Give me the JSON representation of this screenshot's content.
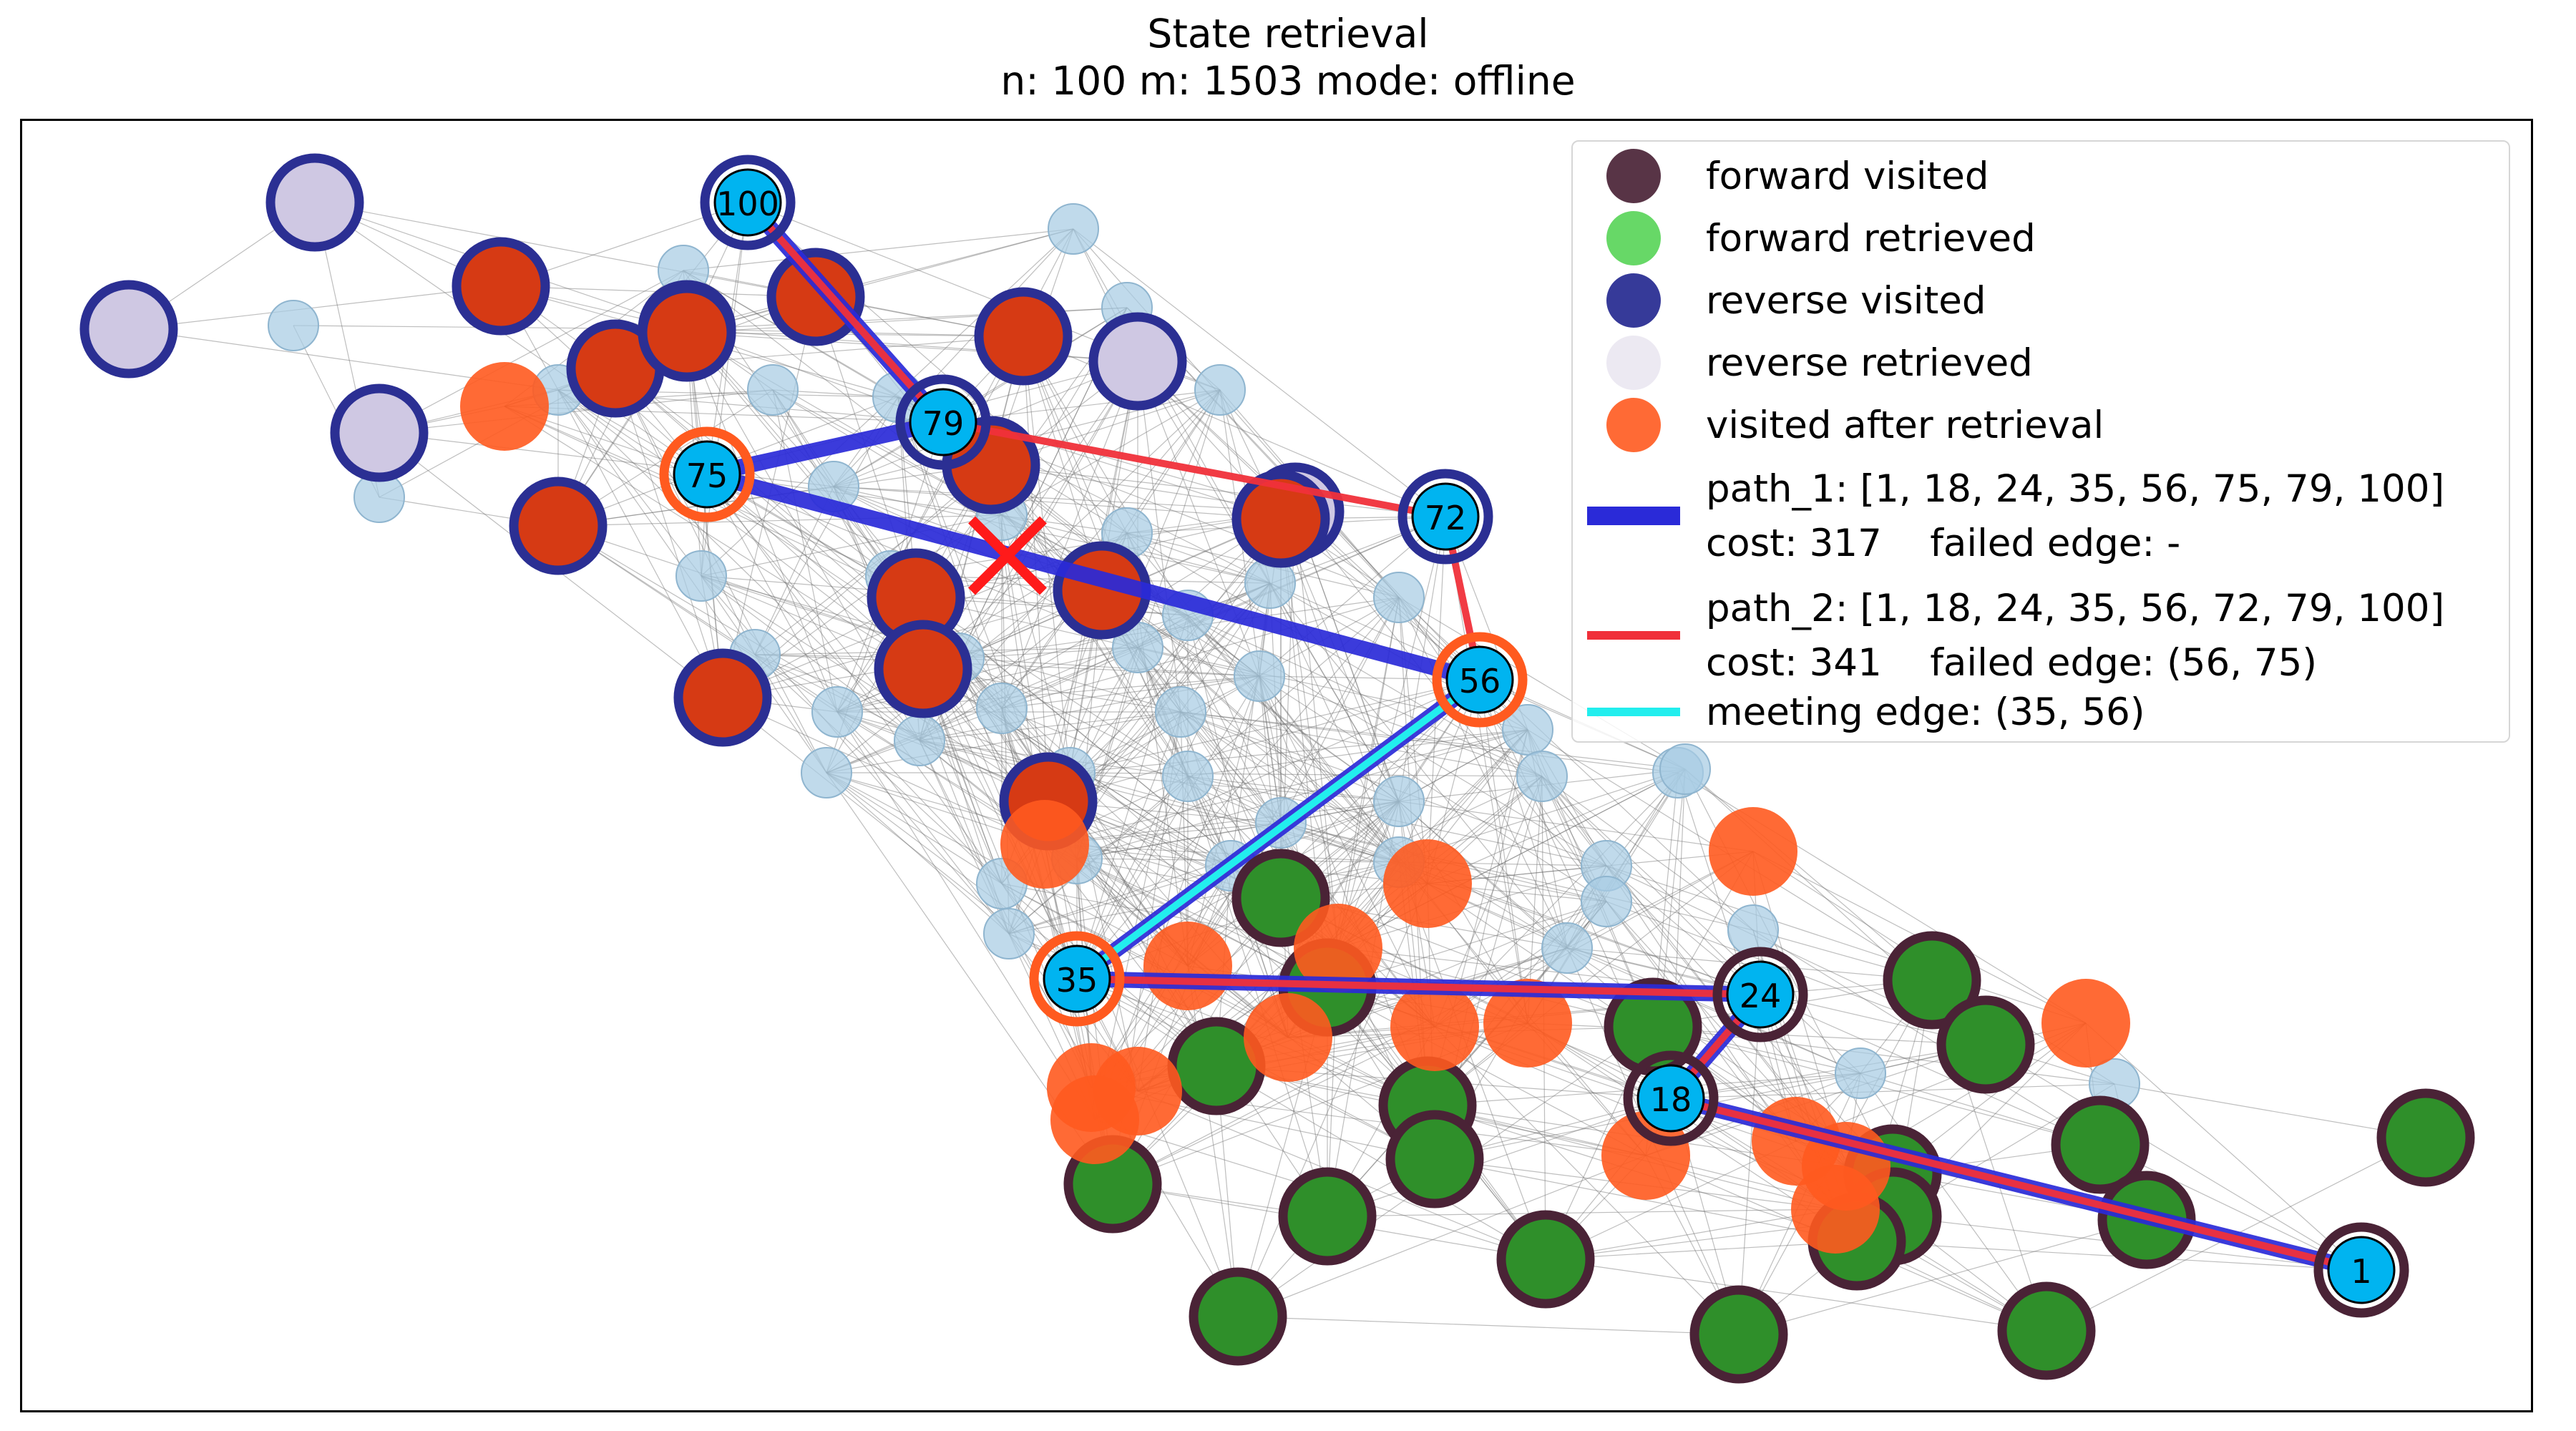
{
  "title": "State retrieval",
  "subtitle": "n: 100   m: 1503   mode: offline",
  "legend": {
    "forward_visited": "forward visited",
    "forward_retrieved": "forward retrieved",
    "reverse_visited": "reverse visited",
    "reverse_retrieved": "reverse retrieved",
    "visited_after_retrieval": "visited after retrieval",
    "path_1_line1": "path_1: [1, 18, 24, 35, 56, 75, 79, 100]",
    "path_1_line2": "cost: 317    failed edge: -",
    "path_2_line1": "path_2: [1, 18, 24, 35, 56, 72, 79, 100]",
    "path_2_line2": "cost: 341    failed edge: (56, 75)",
    "meeting_edge": "meeting edge: (35, 56)"
  },
  "graph": {
    "n": 100,
    "m": 1503,
    "mode": "offline",
    "path_1": [
      1,
      18,
      24,
      35,
      56,
      75,
      79,
      100
    ],
    "path_1_cost": 317,
    "path_2": [
      1,
      18,
      24,
      35,
      56,
      72,
      79,
      100
    ],
    "path_2_cost": 341,
    "failed_edge": [
      56,
      75
    ],
    "meeting_edge": [
      35,
      56
    ],
    "labeled_nodes": [
      "100",
      "79",
      "75",
      "72",
      "56",
      "35",
      "24",
      "18",
      "1"
    ]
  },
  "colors": {
    "forward_visited_ring": "#4a2336",
    "forward_retrieved": "#2f8f2a",
    "reverse_visited_ring": "#2b2f93",
    "reverse_retrieved": "#cfc8e3",
    "visited_after_retrieval": "#ff5a1f",
    "path_1": "#2a2ad8",
    "path_2": "#f0303a",
    "meeting_edge": "#22eeee",
    "path_node_fill": "#00b4f0",
    "unvisited_node": "#a8cce3",
    "failed_marker": "#ff1a1a"
  }
}
